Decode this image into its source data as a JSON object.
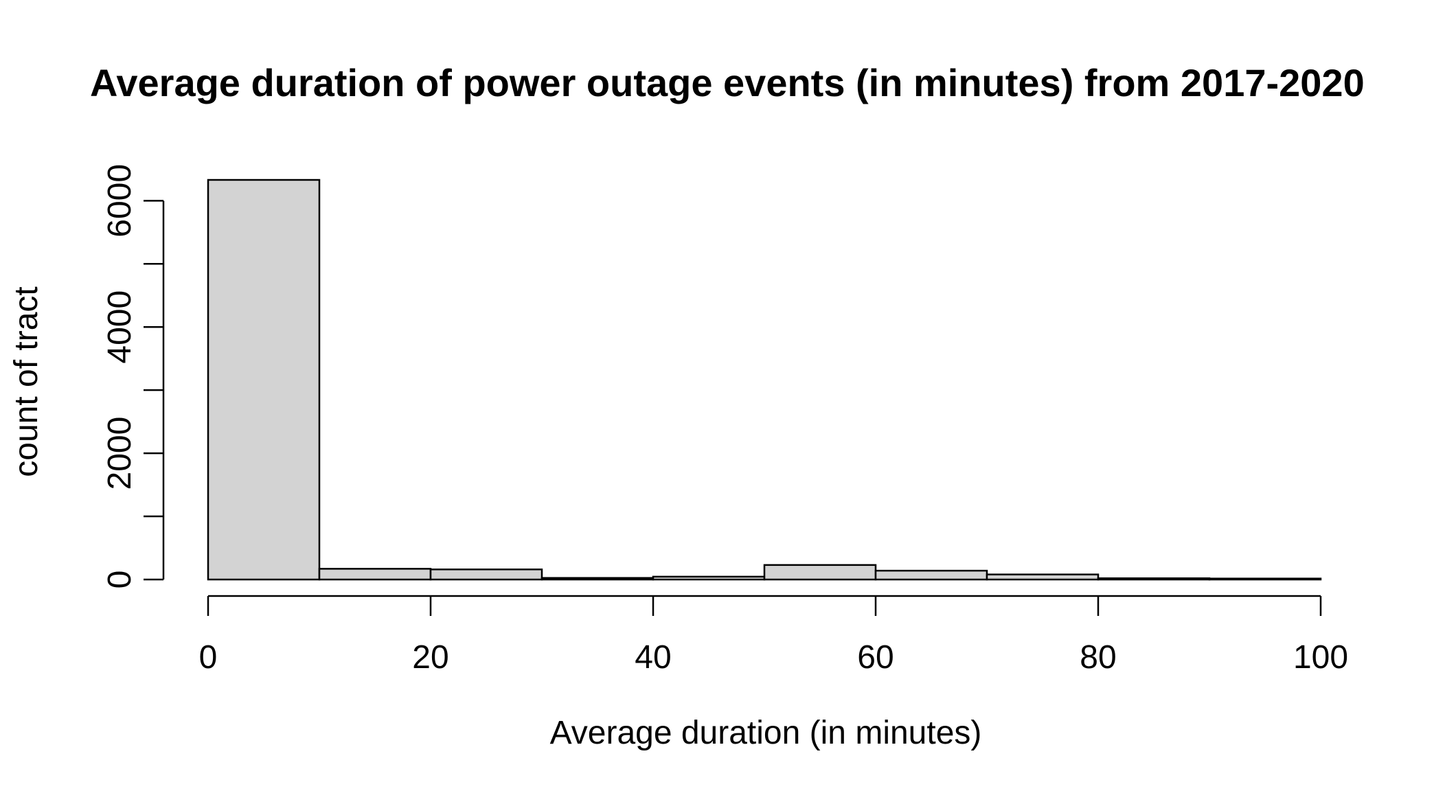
{
  "chart_data": {
    "type": "bar",
    "title": "Average duration of power outage events (in minutes) from  2017-2020",
    "xlabel": "Average duration (in minutes)",
    "ylabel": "count of tract",
    "bin_edges": [
      0,
      10,
      20,
      30,
      40,
      50,
      60,
      70,
      80,
      90,
      100
    ],
    "values": [
      6330,
      170,
      160,
      25,
      45,
      230,
      140,
      80,
      20,
      15
    ],
    "xlim": [
      0,
      100
    ],
    "ylim": [
      0,
      6330
    ],
    "x_ticks": [
      0,
      20,
      40,
      60,
      80,
      100
    ],
    "y_ticks": [
      0,
      1000,
      2000,
      3000,
      4000,
      5000,
      6000
    ],
    "y_tick_labels": [
      "0",
      "",
      "2000",
      "",
      "4000",
      "",
      "6000"
    ],
    "x_tick_labels": [
      "0",
      "20",
      "40",
      "60",
      "80",
      "100"
    ],
    "grid": false,
    "bar_color": "#d3d3d3",
    "edge_color": "#000000"
  }
}
